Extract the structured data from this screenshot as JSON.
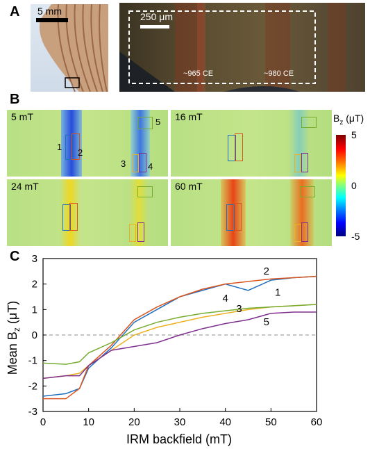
{
  "panels": {
    "a": {
      "label": "A",
      "left_scale": "5 mm",
      "right_scale": "250 μm",
      "dates": [
        "~965 CE",
        "~980 CE"
      ]
    },
    "b": {
      "label": "B",
      "maps": [
        {
          "title": "5 mT",
          "numbers": [
            "1",
            "2",
            "3",
            "4",
            "5"
          ]
        },
        {
          "title": "16 mT"
        },
        {
          "title": "24 mT"
        },
        {
          "title": "60 mT"
        }
      ],
      "colorbar": {
        "title": "B",
        "title_sub": "z",
        "title_unit": " (μT)",
        "ticks": [
          "5",
          "0",
          "-5"
        ]
      }
    },
    "c": {
      "label": "C"
    }
  },
  "chart_data": {
    "type": "line",
    "xlabel": "IRM backfield (mT)",
    "ylabel": "Mean B",
    "ylabel_sub": "z",
    "ylabel_unit": " (μT)",
    "xlim": [
      0,
      60
    ],
    "ylim": [
      -3,
      3
    ],
    "xticks": [
      0,
      10,
      20,
      30,
      40,
      50,
      60
    ],
    "yticks": [
      -3,
      -2,
      -1,
      0,
      1,
      2,
      3
    ],
    "zero_line": "dashed",
    "series": [
      {
        "name": "1",
        "color": "#1f6fbf",
        "x": [
          0,
          5,
          8,
          10,
          15,
          20,
          25,
          30,
          35,
          40,
          45,
          50,
          55,
          60
        ],
        "y": [
          -2.4,
          -2.3,
          -2.1,
          -1.3,
          -0.5,
          0.5,
          1.0,
          1.5,
          1.75,
          2.0,
          1.75,
          2.15,
          2.25,
          2.3
        ]
      },
      {
        "name": "2",
        "color": "#d9541e",
        "x": [
          0,
          5,
          8,
          10,
          15,
          20,
          25,
          30,
          35,
          40,
          45,
          50,
          55,
          60
        ],
        "y": [
          -2.5,
          -2.5,
          -2.1,
          -1.2,
          -0.4,
          0.6,
          1.1,
          1.5,
          1.8,
          2.0,
          2.1,
          2.2,
          2.25,
          2.3
        ]
      },
      {
        "name": "3",
        "color": "#edb120",
        "x": [
          0,
          5,
          8,
          10,
          15,
          20,
          25,
          30,
          35,
          40,
          45,
          50,
          55,
          60
        ],
        "y": [
          -1.7,
          -1.6,
          -1.5,
          -1.2,
          -0.6,
          0.0,
          0.3,
          0.5,
          0.7,
          0.85,
          1.0,
          1.1,
          1.15,
          1.2
        ]
      },
      {
        "name": "4",
        "color": "#77ac30",
        "x": [
          0,
          5,
          8,
          10,
          15,
          20,
          25,
          30,
          35,
          40,
          45,
          50,
          55,
          60
        ],
        "y": [
          -1.1,
          -1.15,
          -1.05,
          -0.7,
          -0.3,
          0.2,
          0.5,
          0.7,
          0.85,
          0.95,
          1.05,
          1.1,
          1.15,
          1.2
        ]
      },
      {
        "name": "5",
        "color": "#7e2f8e",
        "x": [
          0,
          5,
          8,
          10,
          15,
          20,
          25,
          30,
          35,
          40,
          45,
          50,
          55,
          60
        ],
        "y": [
          -1.7,
          -1.6,
          -1.6,
          -1.2,
          -0.6,
          -0.45,
          -0.3,
          0.0,
          0.25,
          0.45,
          0.6,
          0.85,
          0.9,
          0.9
        ]
      }
    ],
    "series_labels": [
      "2",
      "1",
      "4",
      "3",
      "5"
    ]
  }
}
